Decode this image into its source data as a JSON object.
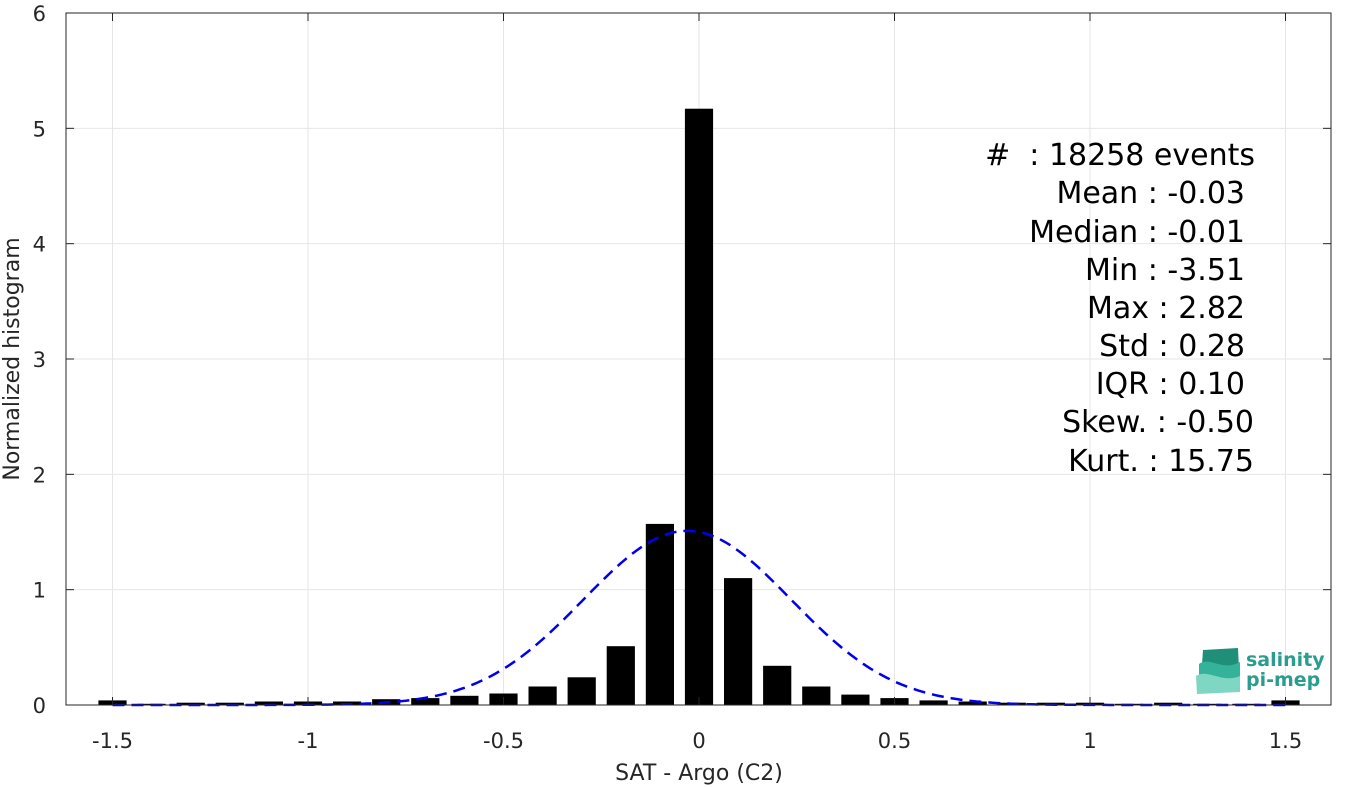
{
  "chart_data": {
    "type": "bar",
    "xlabel": "SAT - Argo (C2)",
    "ylabel": "Normalized histogram",
    "xlim": [
      -1.62,
      1.62
    ],
    "ylim": [
      0,
      6
    ],
    "xticks": [
      -1.5,
      -1,
      -0.5,
      0,
      0.5,
      1,
      1.5
    ],
    "xtick_labels": [
      "-1.5",
      "-1",
      "-0.5",
      "0",
      "0.5",
      "1",
      "1.5"
    ],
    "yticks": [
      0,
      1,
      2,
      3,
      4,
      5,
      6
    ],
    "ytick_labels": [
      "0",
      "1",
      "2",
      "3",
      "4",
      "5",
      "6"
    ],
    "grid": true,
    "bin_width": 0.1,
    "series": [
      {
        "kind": "histogram",
        "color": "#000000",
        "x": [
          -1.5,
          -1.4,
          -1.3,
          -1.2,
          -1.1,
          -1.0,
          -0.9,
          -0.8,
          -0.7,
          -0.6,
          -0.5,
          -0.4,
          -0.3,
          -0.2,
          -0.1,
          0.0,
          0.1,
          0.2,
          0.3,
          0.4,
          0.5,
          0.6,
          0.7,
          0.8,
          0.9,
          1.0,
          1.1,
          1.2,
          1.3,
          1.4,
          1.5
        ],
        "values": [
          0.04,
          0.01,
          0.02,
          0.02,
          0.03,
          0.03,
          0.03,
          0.05,
          0.06,
          0.08,
          0.1,
          0.16,
          0.24,
          0.51,
          1.57,
          5.17,
          1.1,
          0.34,
          0.16,
          0.09,
          0.06,
          0.04,
          0.03,
          0.02,
          0.02,
          0.02,
          0.01,
          0.02,
          0.01,
          0.01,
          0.04
        ]
      },
      {
        "kind": "normal-fit",
        "color": "#0000ee",
        "style": "dashed",
        "mean": -0.03,
        "std": 0.265,
        "peak": 1.51
      }
    ]
  },
  "stats": [
    "#  : 18258 events",
    "Mean : -0.03",
    "Median : -0.01",
    "Min : -3.51",
    "Max : 2.82",
    "Std : 0.28",
    "IQR : 0.10",
    "Skew. : -0.50",
    "Kurt. : 15.75"
  ],
  "logo": {
    "line1": "salinity",
    "line2": "pi-mep",
    "icon": "salinity-wave-logo",
    "color": "#2a9d8f"
  }
}
